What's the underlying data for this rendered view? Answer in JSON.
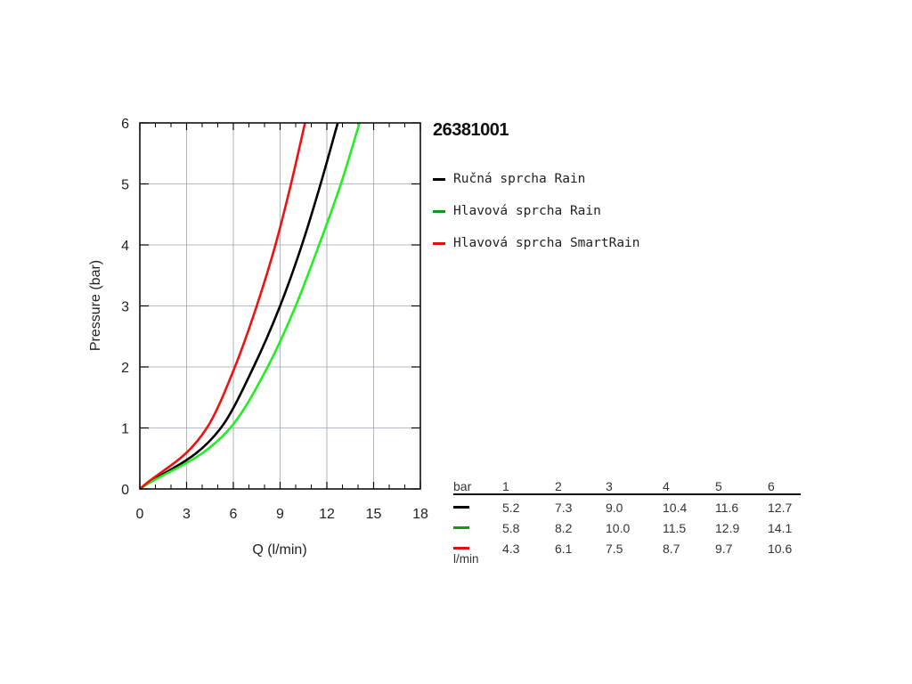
{
  "product_code": "26381001",
  "colors": {
    "black_series": "#000000",
    "green_series": "#22ee22",
    "red_series": "#ee1111",
    "legend_green": "#119911",
    "legend_red": "#dd1111",
    "grid": "#9aa4b0"
  },
  "legend": [
    {
      "label": "Ručná sprcha Rain",
      "color": "#000000"
    },
    {
      "label": "Hlavová sprcha Rain",
      "color": "#119911"
    },
    {
      "label": "Hlavová sprcha SmartRain",
      "color": "#dd1111"
    }
  ],
  "table": {
    "unit_top": "bar",
    "unit_bottom": "l/min",
    "headers": [
      "1",
      "2",
      "3",
      "4",
      "5",
      "6"
    ],
    "rows": [
      {
        "color": "#000000",
        "values": [
          "5.2",
          "7.3",
          "9.0",
          "10.4",
          "11.6",
          "12.7"
        ]
      },
      {
        "color": "#119911",
        "values": [
          "5.8",
          "8.2",
          "10.0",
          "11.5",
          "12.9",
          "14.1"
        ]
      },
      {
        "color": "#dd1111",
        "values": [
          "4.3",
          "6.1",
          "7.5",
          "8.7",
          "9.7",
          "10.6"
        ]
      }
    ]
  },
  "chart_data": {
    "type": "line",
    "title": "",
    "xlabel": "Q (l/min)",
    "ylabel": "Pressure (bar)",
    "xlim": [
      0,
      18
    ],
    "ylim": [
      0,
      6
    ],
    "xticks": [
      "0",
      "3",
      "6",
      "9",
      "12",
      "15",
      "18"
    ],
    "yticks": [
      "0",
      "1",
      "2",
      "3",
      "4",
      "5",
      "6"
    ],
    "grid": true,
    "legend_position": "right",
    "series": [
      {
        "name": "Ručná sprcha Rain",
        "color": "#000000",
        "x": [
          0,
          5.2,
          7.3,
          9.0,
          10.4,
          11.6,
          12.7
        ],
        "y": [
          0,
          1,
          2,
          3,
          4,
          5,
          6
        ]
      },
      {
        "name": "Hlavová sprcha Rain",
        "color": "#22ee22",
        "x": [
          0,
          5.8,
          8.2,
          10.0,
          11.5,
          12.9,
          14.1
        ],
        "y": [
          0,
          1,
          2,
          3,
          4,
          5,
          6
        ]
      },
      {
        "name": "Hlavová sprcha SmartRain",
        "color": "#ee1111",
        "x": [
          0,
          4.3,
          6.1,
          7.5,
          8.7,
          9.7,
          10.6
        ],
        "y": [
          0,
          1,
          2,
          3,
          4,
          5,
          6
        ]
      }
    ]
  }
}
